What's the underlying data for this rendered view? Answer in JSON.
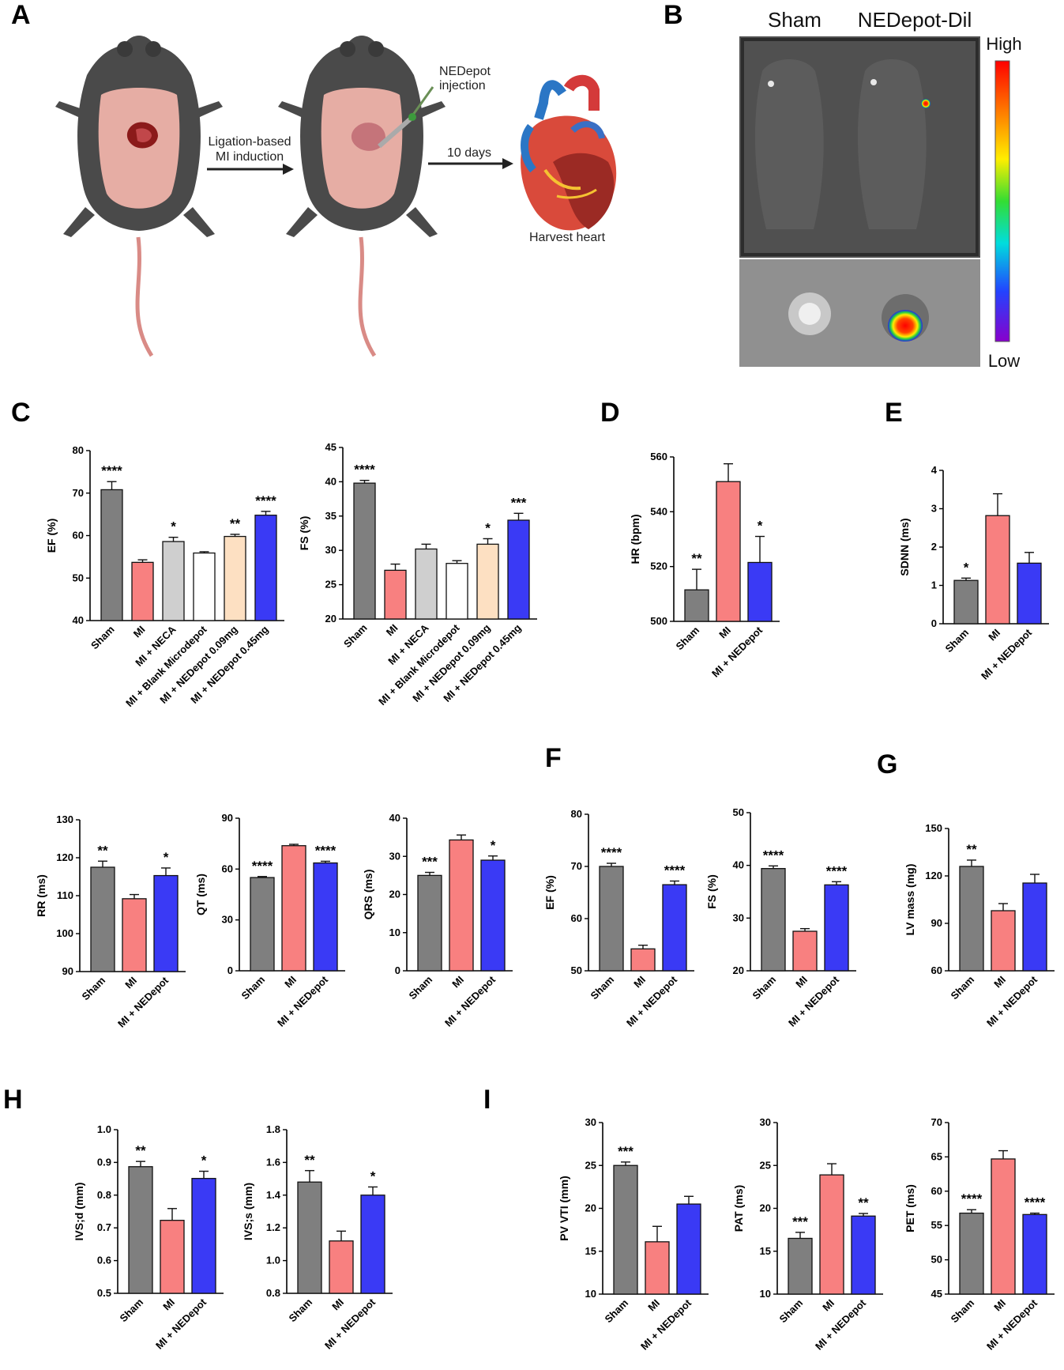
{
  "panels": {
    "A": "A",
    "B": "B",
    "C": "C",
    "D": "D",
    "E": "E",
    "F": "F",
    "G": "G",
    "H": "H",
    "I": "I"
  },
  "schematic": {
    "step1": "Ligation-based",
    "step1b": "MI induction",
    "injection": "NEDepot",
    "injection_b": "injection",
    "duration": "10 days",
    "harvest": "Harvest heart"
  },
  "imaging": {
    "label_left": "Sham",
    "label_right": "NEDepot-Dil",
    "scale_high": "High",
    "scale_low": "Low"
  },
  "colors": {
    "sham": "#7f7f7f",
    "mi": "#f88080",
    "neca": "#cfcfcf",
    "blank": "#ffffff",
    "low_dose": "#fde0c2",
    "nedepot": "#3a3af5"
  },
  "chart_data": [
    {
      "id": "c1",
      "type": "bar",
      "ylabel": "EF (%)",
      "ylim": [
        40,
        80
      ],
      "yticks": [
        40,
        50,
        60,
        70,
        80
      ],
      "categories": [
        "Sham",
        "MI",
        "MI + NECA",
        "MI + Blank Microdepot",
        "MI + NEDepot 0.09mg",
        "MI + NEDepot 0.45mg"
      ],
      "values": [
        70.8,
        53.7,
        58.6,
        55.9,
        59.8,
        64.8
      ],
      "errors": [
        1.9,
        0.6,
        1.0,
        0.3,
        0.5,
        0.9
      ],
      "significance": [
        "****",
        "",
        "*",
        "",
        "**",
        "****"
      ],
      "colors": [
        "#7f7f7f",
        "#f88080",
        "#cfcfcf",
        "#ffffff",
        "#fde0c2",
        "#3a3af5"
      ]
    },
    {
      "id": "c2",
      "type": "bar",
      "ylabel": "FS (%)",
      "ylim": [
        20,
        45
      ],
      "yticks": [
        20,
        25,
        30,
        35,
        40,
        45
      ],
      "categories": [
        "Sham",
        "MI",
        "MI + NECA",
        "MI + Blank Microdepot",
        "MI + NEDepot 0.09mg",
        "MI + NEDepot 0.45mg"
      ],
      "values": [
        39.8,
        27.1,
        30.2,
        28.1,
        30.9,
        34.4
      ],
      "errors": [
        0.4,
        0.9,
        0.7,
        0.4,
        0.8,
        1.0
      ],
      "significance": [
        "****",
        "",
        "",
        "",
        "*",
        "***"
      ],
      "colors": [
        "#7f7f7f",
        "#f88080",
        "#cfcfcf",
        "#ffffff",
        "#fde0c2",
        "#3a3af5"
      ]
    },
    {
      "id": "d",
      "type": "bar",
      "ylabel": "HR (bpm)",
      "ylim": [
        500,
        560
      ],
      "yticks": [
        500,
        520,
        540,
        560
      ],
      "categories": [
        "Sham",
        "MI",
        "MI + NEDepot"
      ],
      "values": [
        511.5,
        551.0,
        521.5
      ],
      "errors": [
        7.5,
        6.5,
        9.5
      ],
      "significance": [
        "**",
        "",
        "*"
      ],
      "colors": [
        "#7f7f7f",
        "#f88080",
        "#3a3af5"
      ]
    },
    {
      "id": "e",
      "type": "bar",
      "ylabel": "SDNN (ms)",
      "ylim": [
        0,
        4
      ],
      "yticks": [
        0,
        1,
        2,
        3,
        4
      ],
      "categories": [
        "Sham",
        "MI",
        "MI + NEDepot"
      ],
      "values": [
        1.13,
        2.82,
        1.58
      ],
      "errors": [
        0.06,
        0.57,
        0.28
      ],
      "significance": [
        "*",
        "",
        ""
      ],
      "colors": [
        "#7f7f7f",
        "#f88080",
        "#3a3af5"
      ]
    },
    {
      "id": "rr",
      "type": "bar",
      "ylabel": "RR (ms)",
      "ylim": [
        90,
        130
      ],
      "yticks": [
        90,
        100,
        110,
        120,
        130
      ],
      "categories": [
        "Sham",
        "MI",
        "MI + NEDepot"
      ],
      "values": [
        117.5,
        109.2,
        115.3
      ],
      "errors": [
        1.6,
        1.1,
        2.0
      ],
      "significance": [
        "**",
        "",
        "*"
      ],
      "colors": [
        "#7f7f7f",
        "#f88080",
        "#3a3af5"
      ]
    },
    {
      "id": "qt",
      "type": "bar",
      "ylabel": "QT (ms)",
      "ylim": [
        0,
        90
      ],
      "yticks": [
        0,
        30,
        60,
        90
      ],
      "categories": [
        "Sham",
        "MI",
        "MI + NEDepot"
      ],
      "values": [
        55.0,
        73.8,
        63.6
      ],
      "errors": [
        0.6,
        0.8,
        1.0
      ],
      "significance": [
        "****",
        "",
        "****"
      ],
      "colors": [
        "#7f7f7f",
        "#f88080",
        "#3a3af5"
      ]
    },
    {
      "id": "qrs",
      "type": "bar",
      "ylabel": "QRS (ms)",
      "ylim": [
        0,
        40
      ],
      "yticks": [
        0,
        10,
        20,
        30,
        40
      ],
      "categories": [
        "Sham",
        "MI",
        "MI + NEDepot"
      ],
      "values": [
        25.0,
        34.3,
        29.0
      ],
      "errors": [
        0.8,
        1.3,
        1.1
      ],
      "significance": [
        "***",
        "",
        "*"
      ],
      "colors": [
        "#7f7f7f",
        "#f88080",
        "#3a3af5"
      ]
    },
    {
      "id": "f1",
      "type": "bar",
      "ylabel": "EF (%)",
      "ylim": [
        50,
        80
      ],
      "yticks": [
        50,
        60,
        70,
        80
      ],
      "categories": [
        "Sham",
        "MI",
        "MI + NEDepot"
      ],
      "values": [
        70.0,
        54.2,
        66.5
      ],
      "errors": [
        0.6,
        0.7,
        0.7
      ],
      "significance": [
        "****",
        "",
        "****"
      ],
      "colors": [
        "#7f7f7f",
        "#f88080",
        "#3a3af5"
      ]
    },
    {
      "id": "f2",
      "type": "bar",
      "ylabel": "FS (%)",
      "ylim": [
        20,
        50
      ],
      "yticks": [
        20,
        30,
        40,
        50
      ],
      "categories": [
        "Sham",
        "MI",
        "MI + NEDepot"
      ],
      "values": [
        39.4,
        27.5,
        36.3
      ],
      "errors": [
        0.5,
        0.5,
        0.6
      ],
      "significance": [
        "****",
        "",
        "****"
      ],
      "colors": [
        "#7f7f7f",
        "#f88080",
        "#3a3af5"
      ]
    },
    {
      "id": "g",
      "type": "bar",
      "ylabel": "LV mass (mg)",
      "ylim": [
        60,
        150
      ],
      "yticks": [
        60,
        90,
        120,
        150
      ],
      "categories": [
        "Sham",
        "MI",
        "MI + NEDepot"
      ],
      "values": [
        126.0,
        98.0,
        115.5
      ],
      "errors": [
        4.0,
        4.5,
        5.5
      ],
      "significance": [
        "**",
        "",
        ""
      ],
      "colors": [
        "#7f7f7f",
        "#f88080",
        "#3a3af5"
      ]
    },
    {
      "id": "h1",
      "type": "bar",
      "ylabel": "IVS;d (mm)",
      "ylim": [
        0.5,
        1.0
      ],
      "yticks": [
        0.5,
        0.6,
        0.7,
        0.8,
        0.9,
        1.0
      ],
      "ytick_labels": [
        "0.5",
        "0.6",
        "0.7",
        "0.8",
        "0.9",
        "1.0"
      ],
      "categories": [
        "Sham",
        "MI",
        "MI + NEDepot"
      ],
      "values": [
        0.887,
        0.723,
        0.851
      ],
      "errors": [
        0.016,
        0.036,
        0.022
      ],
      "significance": [
        "**",
        "",
        "*"
      ],
      "colors": [
        "#7f7f7f",
        "#f88080",
        "#3a3af5"
      ]
    },
    {
      "id": "h2",
      "type": "bar",
      "ylabel": "IVS;s (mm)",
      "ylim": [
        0.8,
        1.8
      ],
      "yticks": [
        0.8,
        1.0,
        1.2,
        1.4,
        1.6,
        1.8
      ],
      "ytick_labels": [
        "0.8",
        "1.0",
        "1.2",
        "1.4",
        "1.6",
        "1.8"
      ],
      "categories": [
        "Sham",
        "MI",
        "MI + NEDepot"
      ],
      "values": [
        1.48,
        1.12,
        1.4
      ],
      "errors": [
        0.07,
        0.06,
        0.05
      ],
      "significance": [
        "**",
        "",
        "*"
      ],
      "colors": [
        "#7f7f7f",
        "#f88080",
        "#3a3af5"
      ]
    },
    {
      "id": "i1",
      "type": "bar",
      "ylabel": "PV VTI (mm)",
      "ylim": [
        10,
        30
      ],
      "yticks": [
        10,
        15,
        20,
        25,
        30
      ],
      "categories": [
        "Sham",
        "MI",
        "MI + NEDepot"
      ],
      "values": [
        25.0,
        16.1,
        20.5
      ],
      "errors": [
        0.4,
        1.8,
        0.9
      ],
      "significance": [
        "***",
        "",
        ""
      ],
      "colors": [
        "#7f7f7f",
        "#f88080",
        "#3a3af5"
      ]
    },
    {
      "id": "i2",
      "type": "bar",
      "ylabel": "PAT (ms)",
      "ylim": [
        10,
        30
      ],
      "yticks": [
        10,
        15,
        20,
        25,
        30
      ],
      "categories": [
        "Sham",
        "MI",
        "MI + NEDepot"
      ],
      "values": [
        16.5,
        23.9,
        19.1
      ],
      "errors": [
        0.7,
        1.3,
        0.3
      ],
      "significance": [
        "***",
        "",
        "**"
      ],
      "colors": [
        "#7f7f7f",
        "#f88080",
        "#3a3af5"
      ]
    },
    {
      "id": "i3",
      "type": "bar",
      "ylabel": "PET (ms)",
      "ylim": [
        45,
        70
      ],
      "yticks": [
        45,
        50,
        55,
        60,
        65,
        70
      ],
      "categories": [
        "Sham",
        "MI",
        "MI + NEDepot"
      ],
      "values": [
        56.8,
        64.7,
        56.6
      ],
      "errors": [
        0.5,
        1.2,
        0.2
      ],
      "significance": [
        "****",
        "",
        "****"
      ],
      "colors": [
        "#7f7f7f",
        "#f88080",
        "#3a3af5"
      ]
    }
  ]
}
